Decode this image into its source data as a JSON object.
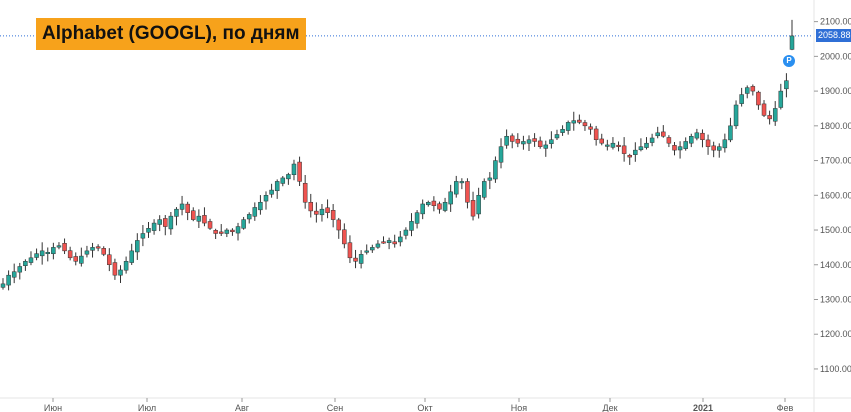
{
  "title": "Alphabet (GOOGL), по дням",
  "last_price_label": "2058.88",
  "marker_label": "P",
  "colors": {
    "up": "#26a69a",
    "down": "#ef5350",
    "title_bg": "#f7a21b",
    "price_label_bg": "#2f6fd6",
    "axis_text": "#555555",
    "price_line": "#2f6fd6"
  },
  "chart_data": {
    "type": "candlestick",
    "title": "Alphabet (GOOGL), по дням",
    "x_ticks": [
      "Июн",
      "Июл",
      "Авг",
      "Сен",
      "Окт",
      "Ноя",
      "Дек",
      "2021",
      "Фев"
    ],
    "y_ticks": [
      "1100.00",
      "1200.00",
      "1300.00",
      "1400.00",
      "1500.00",
      "1600.00",
      "1700.00",
      "1800.00",
      "1900.00",
      "2000.00",
      "2100.00"
    ],
    "ylim": [
      1025,
      2145
    ],
    "last_price": 2058.88,
    "grid": false,
    "close_path": [
      1345,
      1370,
      1380,
      1395,
      1410,
      1420,
      1432,
      1440,
      1436,
      1450,
      1455,
      1440,
      1420,
      1410,
      1425,
      1440,
      1450,
      1448,
      1430,
      1400,
      1370,
      1385,
      1410,
      1440,
      1470,
      1490,
      1505,
      1520,
      1530,
      1510,
      1540,
      1560,
      1575,
      1550,
      1530,
      1540,
      1520,
      1505,
      1490,
      1490,
      1500,
      1495,
      1510,
      1530,
      1545,
      1565,
      1580,
      1600,
      1615,
      1640,
      1650,
      1660,
      1690,
      1640,
      1580,
      1555,
      1545,
      1560,
      1550,
      1530,
      1500,
      1460,
      1420,
      1410,
      1430,
      1440,
      1450,
      1460,
      1465,
      1470,
      1460,
      1480,
      1500,
      1525,
      1550,
      1575,
      1580,
      1570,
      1560,
      1580,
      1610,
      1640,
      1640,
      1580,
      1540,
      1600,
      1640,
      1650,
      1700,
      1740,
      1770,
      1755,
      1750,
      1755,
      1760,
      1755,
      1740,
      1745,
      1760,
      1775,
      1790,
      1810,
      1815,
      1810,
      1800,
      1790,
      1760,
      1750,
      1745,
      1750,
      1740,
      1720,
      1710,
      1730,
      1740,
      1750,
      1765,
      1780,
      1770,
      1750,
      1730,
      1740,
      1755,
      1770,
      1780,
      1760,
      1740,
      1730,
      1740,
      1760,
      1800,
      1860,
      1890,
      1910,
      1900,
      1860,
      1830,
      1820,
      1850,
      1900,
      1930,
      2058.88
    ]
  }
}
